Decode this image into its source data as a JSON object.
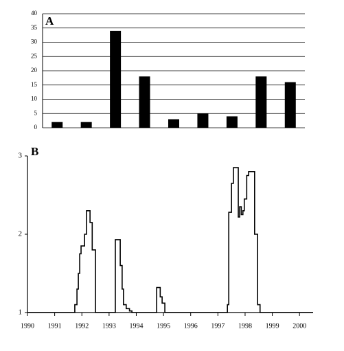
{
  "chart_data": [
    {
      "type": "bar",
      "panel_label": "A",
      "categories": [
        null,
        null,
        null,
        null,
        null,
        null,
        null,
        null,
        null
      ],
      "values": [
        2,
        2,
        34,
        18,
        3,
        5,
        4,
        18,
        16
      ],
      "color": "#000000",
      "ylim": [
        0,
        40
      ],
      "yticks": [
        0,
        5,
        10,
        15,
        20,
        25,
        30,
        35,
        40
      ],
      "grid": true
    },
    {
      "type": "line",
      "panel_label": "B",
      "color": "#000000",
      "x": [
        1990,
        1991.74,
        1991.74,
        1991.82,
        1991.82,
        1991.87,
        1991.87,
        1991.92,
        1991.92,
        1991.97,
        1991.97,
        1992.1,
        1992.1,
        1992.17,
        1992.17,
        1992.3,
        1992.3,
        1992.38,
        1992.38,
        1992.5,
        1992.5,
        1993.23,
        1993.23,
        1993.41,
        1993.41,
        1993.48,
        1993.48,
        1993.53,
        1993.53,
        1993.63,
        1993.63,
        1993.75,
        1993.75,
        1993.84,
        1993.84,
        1994.75,
        1994.75,
        1994.88,
        1994.88,
        1994.95,
        1994.95,
        1995.05,
        1995.05,
        1997.35,
        1997.35,
        1997.4,
        1997.4,
        1997.5,
        1997.5,
        1997.57,
        1997.57,
        1997.75,
        1997.75,
        1997.8,
        1997.8,
        1997.86,
        1997.86,
        1997.92,
        1997.92,
        1997.97,
        1997.97,
        1998.06,
        1998.06,
        1998.13,
        1998.13,
        1998.35,
        1998.35,
        1998.46,
        1998.46,
        1998.55,
        1998.55,
        2000.5
      ],
      "values": [
        1,
        1,
        1.1,
        1.1,
        1.3,
        1.3,
        1.5,
        1.5,
        1.75,
        1.75,
        1.85,
        1.85,
        2.0,
        2.0,
        2.3,
        2.3,
        2.15,
        2.15,
        1.8,
        1.8,
        1,
        1,
        1.93,
        1.93,
        1.6,
        1.6,
        1.3,
        1.3,
        1.1,
        1.1,
        1.05,
        1.05,
        1.02,
        1.02,
        1,
        1,
        1.32,
        1.32,
        1.2,
        1.2,
        1.12,
        1.12,
        1,
        1,
        1.1,
        1.1,
        2.28,
        2.28,
        2.65,
        2.65,
        2.85,
        2.85,
        2.22,
        2.22,
        2.35,
        2.35,
        2.25,
        2.25,
        2.3,
        2.3,
        2.45,
        2.45,
        2.75,
        2.75,
        2.8,
        2.8,
        2.0,
        2.0,
        1.1,
        1.1,
        1,
        1
      ],
      "xlim": [
        1990,
        2000.5
      ],
      "xticks": [
        1990,
        1991,
        1992,
        1993,
        1994,
        1995,
        1996,
        1997,
        1998,
        1999,
        2000
      ],
      "ylim": [
        1,
        3
      ],
      "yticks": [
        1,
        2,
        3
      ]
    }
  ]
}
